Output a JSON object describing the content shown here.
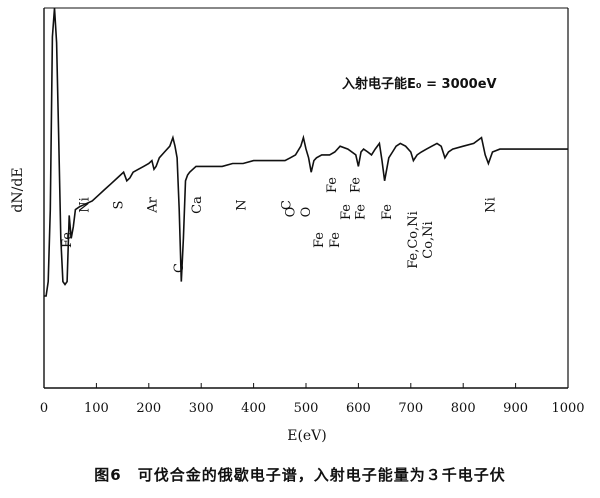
{
  "chart_data": {
    "type": "line",
    "xlabel": "E(eV)",
    "ylabel": "dN/dE",
    "xlim": [
      0,
      1000
    ],
    "x_ticks": [
      0,
      100,
      200,
      300,
      400,
      500,
      600,
      700,
      800,
      900,
      1000
    ],
    "annotation": "入射电子能E₀ = 3000eV",
    "grid": false,
    "series": [
      {
        "x": [
          0,
          4,
          8,
          12,
          16,
          20,
          24,
          28,
          32,
          36,
          40,
          44,
          48,
          52,
          56,
          60,
          68,
          80,
          92,
          104,
          116,
          128,
          140,
          152,
          158,
          164,
          170,
          180,
          190,
          200,
          206,
          210,
          214,
          220,
          230,
          240,
          246,
          250,
          254,
          258,
          262,
          266,
          270,
          274,
          278,
          284,
          290,
          300,
          320,
          340,
          360,
          380,
          400,
          420,
          440,
          460,
          470,
          480,
          490,
          495,
          500,
          505,
          510,
          515,
          520,
          530,
          545,
          555,
          565,
          580,
          595,
          600,
          605,
          610,
          618,
          625,
          632,
          640,
          645,
          650,
          658,
          665,
          672,
          680,
          690,
          700,
          705,
          712,
          720,
          730,
          740,
          750,
          758,
          765,
          772,
          780,
          800,
          820,
          835,
          842,
          848,
          856,
          870,
          900,
          940,
          980,
          1000
        ],
        "y": [
          0.0,
          0.0,
          0.05,
          0.3,
          0.9,
          1.0,
          0.88,
          0.55,
          0.2,
          0.05,
          0.04,
          0.05,
          0.28,
          0.2,
          0.24,
          0.3,
          0.31,
          0.32,
          0.33,
          0.35,
          0.37,
          0.39,
          0.41,
          0.43,
          0.4,
          0.41,
          0.43,
          0.44,
          0.45,
          0.46,
          0.47,
          0.44,
          0.45,
          0.48,
          0.5,
          0.52,
          0.55,
          0.52,
          0.48,
          0.3,
          0.05,
          0.2,
          0.4,
          0.42,
          0.43,
          0.44,
          0.45,
          0.45,
          0.45,
          0.45,
          0.46,
          0.46,
          0.47,
          0.47,
          0.47,
          0.47,
          0.48,
          0.49,
          0.52,
          0.55,
          0.51,
          0.48,
          0.43,
          0.47,
          0.48,
          0.49,
          0.49,
          0.5,
          0.52,
          0.51,
          0.49,
          0.45,
          0.5,
          0.51,
          0.5,
          0.49,
          0.51,
          0.53,
          0.47,
          0.4,
          0.48,
          0.5,
          0.52,
          0.53,
          0.52,
          0.5,
          0.47,
          0.49,
          0.5,
          0.51,
          0.52,
          0.53,
          0.52,
          0.48,
          0.5,
          0.51,
          0.52,
          0.53,
          0.55,
          0.49,
          0.46,
          0.5,
          0.51,
          0.51,
          0.51,
          0.51,
          0.51
        ]
      }
    ],
    "peak_labels": [
      {
        "text": "Fe",
        "x": 52,
        "y_level": "low"
      },
      {
        "text": "Ni",
        "x": 85,
        "y_level": "mid"
      },
      {
        "text": "S",
        "x": 150,
        "y_level": "mid"
      },
      {
        "text": "Ar",
        "x": 215,
        "y_level": "mid"
      },
      {
        "text": "C",
        "x": 265,
        "y_level": "deep"
      },
      {
        "text": "Ca",
        "x": 300,
        "y_level": "mid"
      },
      {
        "text": "N",
        "x": 385,
        "y_level": "mid"
      },
      {
        "text": "C",
        "x": 470,
        "y_level": "mid"
      },
      {
        "text": "O",
        "x": 478,
        "y_level": "mid2"
      },
      {
        "text": "O",
        "x": 508,
        "y_level": "mid2"
      },
      {
        "text": "Fe",
        "x": 532,
        "y_level": "low"
      },
      {
        "text": "Fe",
        "x": 557,
        "y_level": "upper"
      },
      {
        "text": "Fe",
        "x": 563,
        "y_level": "lower"
      },
      {
        "text": "Fe",
        "x": 584,
        "y_level": "mid2"
      },
      {
        "text": "Fe",
        "x": 602,
        "y_level": "upper"
      },
      {
        "text": "Fe",
        "x": 612,
        "y_level": "mid2"
      },
      {
        "text": "Fe",
        "x": 662,
        "y_level": "mid2"
      },
      {
        "text": "Fe,Co,Ni",
        "x": 712,
        "y_level": "low"
      },
      {
        "text": "Co,Ni",
        "x": 740,
        "y_level": "low"
      },
      {
        "text": "Ni",
        "x": 860,
        "y_level": "mid"
      }
    ]
  },
  "caption": "图6　可伐合金的俄歇电子谱，入射电子能量为３千电子伏"
}
